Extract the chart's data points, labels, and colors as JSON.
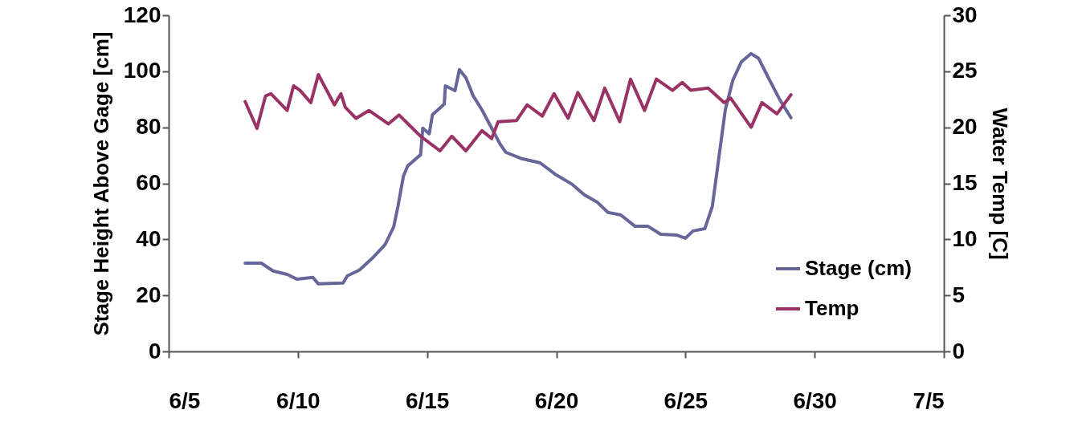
{
  "chart_data": {
    "type": "line",
    "ylabel": "Stage Height Above Gage [cm]",
    "y2label": "Water Temp [C]",
    "xlim": [
      "--06-05",
      "--07-05"
    ],
    "xticks": [
      {
        "value": "--06-05",
        "label": "6/5"
      },
      {
        "value": "--06-10",
        "label": "6/10"
      },
      {
        "value": "--06-15",
        "label": "6/15"
      },
      {
        "value": "--06-20",
        "label": "6/20"
      },
      {
        "value": "--06-25",
        "label": "6/25"
      },
      {
        "value": "--06-30",
        "label": "6/30"
      },
      {
        "value": "--07-05",
        "label": "7/5"
      }
    ],
    "ylim": [
      0,
      120
    ],
    "yticks": [
      0,
      20,
      40,
      60,
      80,
      100,
      120
    ],
    "y2lim": [
      0,
      30
    ],
    "y2ticks": [
      0,
      5,
      10,
      15,
      20,
      25,
      30
    ],
    "legend": "bottom right",
    "line_style": "solid",
    "marker": "none",
    "series": [
      {
        "name": "Stage (cm)",
        "color": "#666699",
        "x": [
          "--06-07T23:00",
          "--06-08T14:00",
          "--06-09T01:00",
          "--06-09T14:00",
          "--06-09T23:00",
          "--06-10T14:00",
          "--06-10T19:00",
          "--06-11T18:00",
          "--06-11T22:00",
          "--06-12T09:00",
          "--06-12T21:00",
          "--06-13T09:00",
          "--06-13T17:00",
          "--06-13T21:00",
          "--06-14T02:00",
          "--06-14T06:00",
          "--06-14T18:00",
          "--06-14T20:00",
          "--06-15T02:00",
          "--06-15T05:00",
          "--06-15T16:00",
          "--06-15T17:00",
          "--06-16T02:00",
          "--06-16T06:00",
          "--06-16T12:00",
          "--06-16T19:00",
          "--06-17T03:00",
          "--06-17T20:00",
          "--06-18T01:00",
          "--06-18T16:00",
          "--06-19T09:00",
          "--06-20T00:00",
          "--06-20T15:00",
          "--06-21T02:00",
          "--06-21T14:00",
          "--06-22T00:00",
          "--06-22T12:00",
          "--06-23T01:00",
          "--06-23T13:00",
          "--06-24T01:00",
          "--06-24T16:00",
          "--06-25T00:00",
          "--06-25T07:00",
          "--06-25T18:00",
          "--06-26T01:00",
          "--06-26T06:00",
          "--06-26T13:00",
          "--06-26T20:00",
          "--06-27T04:00",
          "--06-27T13:00",
          "--06-27T20:00",
          "--06-28T05:00",
          "--06-28T15:00",
          "--06-29T02:00"
        ],
        "values": [
          31.5,
          31.5,
          28.7,
          27.5,
          25.8,
          26.4,
          24.1,
          24.4,
          27,
          29,
          33.2,
          38.1,
          44.4,
          51.9,
          62.5,
          66.2,
          70.2,
          79.7,
          77.7,
          84.5,
          88.3,
          94.8,
          93.1,
          100.6,
          97.7,
          91.1,
          86.2,
          73.9,
          71.1,
          68.8,
          67.3,
          63,
          59.6,
          55.9,
          53.3,
          49.6,
          48.7,
          44.7,
          44.7,
          41.8,
          41.5,
          40.4,
          43,
          43.8,
          51.9,
          66.2,
          86.2,
          96.8,
          103.4,
          106.3,
          104.6,
          97.7,
          90.3,
          83.4
        ]
      },
      {
        "name": "Temp",
        "color": "#993366",
        "axis": "y2",
        "x": [
          "--06-07T23:00",
          "--06-08T10:00",
          "--06-08T18:00",
          "--06-08T23:00",
          "--06-09T14:00",
          "--06-09T20:00",
          "--06-10T02:00",
          "--06-10T12:00",
          "--06-10T19:00",
          "--06-11T10:00",
          "--06-11T16:00",
          "--06-11T20:00",
          "--06-12T06:00",
          "--06-12T18:00",
          "--06-13T12:00",
          "--06-13T22:00",
          "--06-14T18:00",
          "--06-15T12:00",
          "--06-15T23:00",
          "--06-16T12:00",
          "--06-17T03:00",
          "--06-17T12:00",
          "--06-17T18:00",
          "--06-18T11:00",
          "--06-18T21:00",
          "--06-19T11:00",
          "--06-19T22:00",
          "--06-20T11:00",
          "--06-20T20:00",
          "--06-21T11:00",
          "--06-21T21:00",
          "--06-22T11:00",
          "--06-22T21:00",
          "--06-23T10:00",
          "--06-23T21:00",
          "--06-24T12:00",
          "--06-24T21:00",
          "--06-25T05:00",
          "--06-25T21:00",
          "--06-26T12:00",
          "--06-26T18:00",
          "--06-27T13:00",
          "--06-27T23:00",
          "--06-28T13:00",
          "--06-29T02:00"
        ],
        "values": [
          22.3,
          19.9,
          22.8,
          23.0,
          21.5,
          23.7,
          23.3,
          22.2,
          24.7,
          22.0,
          23.0,
          21.8,
          20.8,
          21.5,
          20.3,
          21.1,
          19.2,
          17.9,
          19.2,
          17.9,
          19.7,
          19.0,
          20.5,
          20.6,
          22.0,
          21.0,
          23.0,
          20.8,
          23.1,
          20.6,
          23.5,
          20.5,
          24.3,
          21.5,
          24.3,
          23.3,
          24.0,
          23.3,
          23.5,
          22.2,
          22.6,
          20.0,
          22.2,
          21.2,
          22.9
        ]
      }
    ]
  }
}
